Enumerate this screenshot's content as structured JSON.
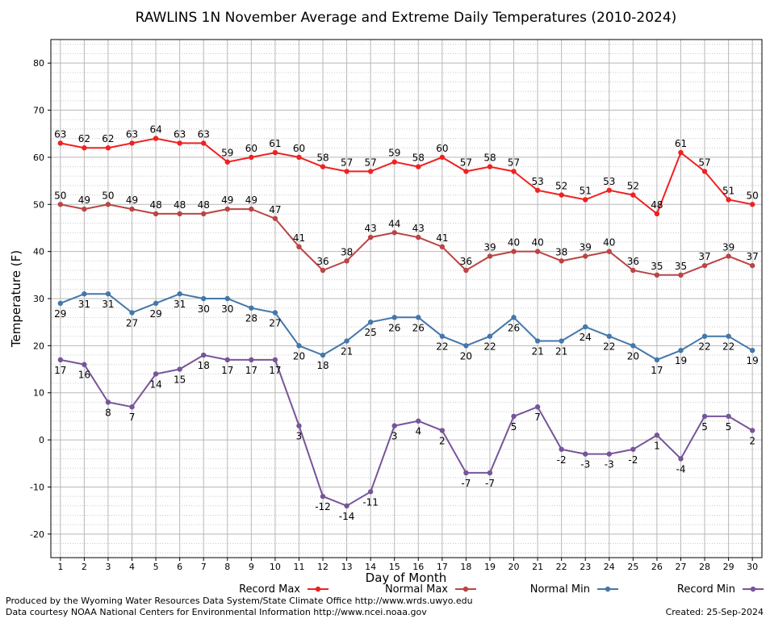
{
  "chart_data": {
    "type": "line",
    "title": "RAWLINS 1N November Average and Extreme Daily Temperatures (2010-2024)",
    "xlabel": "Day of Month",
    "ylabel": "Temperature (F)",
    "x": [
      1,
      2,
      3,
      4,
      5,
      6,
      7,
      8,
      9,
      10,
      11,
      12,
      13,
      14,
      15,
      16,
      17,
      18,
      19,
      20,
      21,
      22,
      23,
      24,
      25,
      26,
      27,
      28,
      29,
      30
    ],
    "xlim": [
      0.6,
      30.4
    ],
    "ylim": [
      -25,
      85
    ],
    "yticks": [
      -20,
      -10,
      0,
      10,
      20,
      30,
      40,
      50,
      60,
      70,
      80
    ],
    "grid": true,
    "legend_position": "bottom",
    "series": [
      {
        "name": "Record Max",
        "color": "#ee2222",
        "values": [
          63,
          62,
          62,
          63,
          64,
          63,
          63,
          59,
          60,
          61,
          60,
          58,
          57,
          57,
          59,
          58,
          60,
          57,
          58,
          57,
          53,
          52,
          51,
          53,
          52,
          48,
          61,
          57,
          51,
          50
        ]
      },
      {
        "name": "Normal Max",
        "color": "#bb4444",
        "values": [
          50,
          49,
          50,
          49,
          48,
          48,
          48,
          49,
          49,
          47,
          41,
          36,
          38,
          43,
          44,
          43,
          41,
          36,
          39,
          40,
          40,
          38,
          39,
          40,
          36,
          35,
          35,
          37,
          39,
          37
        ]
      },
      {
        "name": "Normal Min",
        "color": "#4477aa",
        "values": [
          29,
          31,
          31,
          27,
          29,
          31,
          30,
          30,
          28,
          27,
          20,
          18,
          21,
          25,
          26,
          26,
          22,
          20,
          22,
          26,
          21,
          21,
          24,
          22,
          20,
          17,
          19,
          22,
          22,
          19
        ]
      },
      {
        "name": "Record Min",
        "color": "#775599",
        "values": [
          17,
          16,
          8,
          7,
          14,
          15,
          18,
          17,
          17,
          17,
          3,
          -12,
          -14,
          -11,
          3,
          4,
          2,
          -7,
          -7,
          5,
          7,
          -2,
          -3,
          -3,
          -2,
          1,
          -4,
          5,
          5,
          2
        ]
      }
    ]
  },
  "footer": {
    "produced_by": "Produced by the Wyoming Water Resources Data System/State Climate Office http://www.wrds.uwyo.edu",
    "data_courtesy": "Data courtesy NOAA National Centers for Environmental Information http://www.ncei.noaa.gov",
    "created": "Created:  25-Sep-2024"
  }
}
